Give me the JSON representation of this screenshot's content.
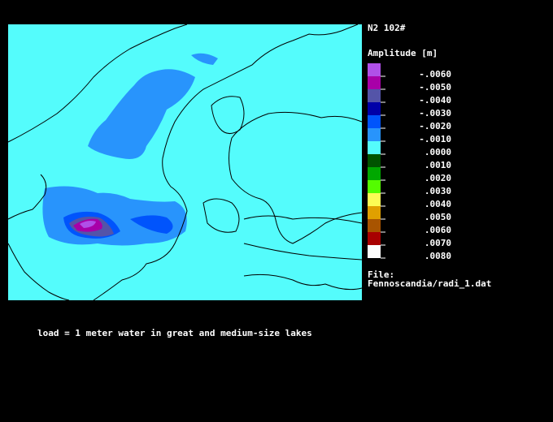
{
  "header": {
    "title": "N2 102#"
  },
  "legend": {
    "title": "Amplitude [m]",
    "items": [
      {
        "label": "-.0060",
        "color": "#b050e8"
      },
      {
        "label": "-.0050",
        "color": "#a800a8"
      },
      {
        "label": "-.0040",
        "color": "#5454a8"
      },
      {
        "label": "-.0030",
        "color": "#0000a8"
      },
      {
        "label": "-.0020",
        "color": "#0054fc"
      },
      {
        "label": "-.0010",
        "color": "#2894fc"
      },
      {
        "label": ".0000",
        "color": "#54fcfc"
      },
      {
        "label": ".0010",
        "color": "#005400"
      },
      {
        "label": ".0020",
        "color": "#00a800"
      },
      {
        "label": ".0030",
        "color": "#54fc00"
      },
      {
        "label": ".0040",
        "color": "#fcfc54"
      },
      {
        "label": ".0050",
        "color": "#e0a000"
      },
      {
        "label": ".0060",
        "color": "#a85400"
      },
      {
        "label": ".0070",
        "color": "#a80000"
      },
      {
        "label": ".0080",
        "color": "#fcfcfc"
      }
    ]
  },
  "file": {
    "label": "File:",
    "path": "Fennoscandia/radi_1.dat"
  },
  "caption": "load = 1 meter water in great and medium-size lakes"
}
